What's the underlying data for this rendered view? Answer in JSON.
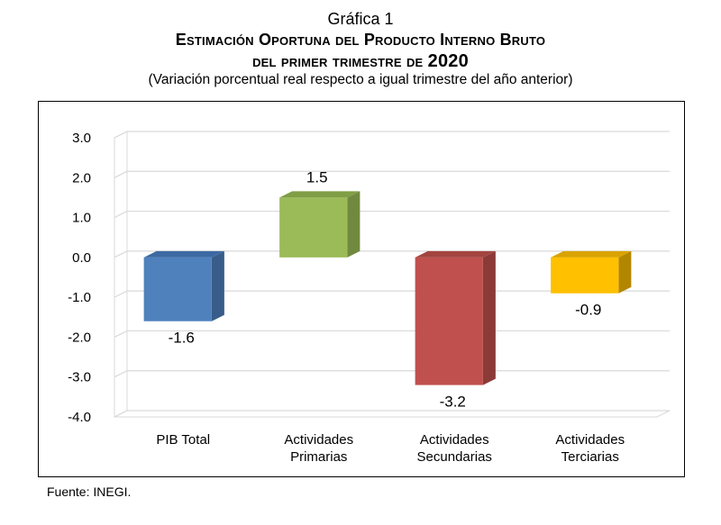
{
  "header": {
    "figure_label": "Gráfica 1",
    "title_line1": "Estimación Oportuna del Producto Interno Bruto",
    "title_line2_text": "del primer trimestre de",
    "title_line2_year": "2020",
    "subtitle": "(Variación porcentual real respecto a igual trimestre del año anterior)"
  },
  "chart_data": {
    "type": "bar",
    "title": "Estimación Oportuna del Producto Interno Bruto del primer trimestre de 2020",
    "subtitle": "(Variación porcentual real respecto a igual trimestre del año anterior)",
    "categories": [
      [
        "PIB Total"
      ],
      [
        "Actividades",
        "Primarias"
      ],
      [
        "Actividades",
        "Secundarias"
      ],
      [
        "Actividades",
        "Terciarias"
      ]
    ],
    "values": [
      -1.6,
      1.5,
      -3.2,
      -0.9
    ],
    "value_labels": [
      "-1.6",
      "1.5",
      "-3.2",
      "-0.9"
    ],
    "colors": [
      "#4f81bd",
      "#9bbb59",
      "#c0504d",
      "#ffc000"
    ],
    "side_colors": [
      "#385d8a",
      "#71893f",
      "#8c3a38",
      "#b38600"
    ],
    "top_colors": [
      "#3d6aa3",
      "#7f9e45",
      "#a34441",
      "#d9a300"
    ],
    "ylim": [
      -4.0,
      3.0
    ],
    "yticks": [
      "3.0",
      "2.0",
      "1.0",
      "0.0",
      "-1.0",
      "-2.0",
      "-3.0",
      "-4.0"
    ],
    "grid": true,
    "style": "3d-column"
  },
  "footer": {
    "source": "Fuente: INEGI."
  }
}
